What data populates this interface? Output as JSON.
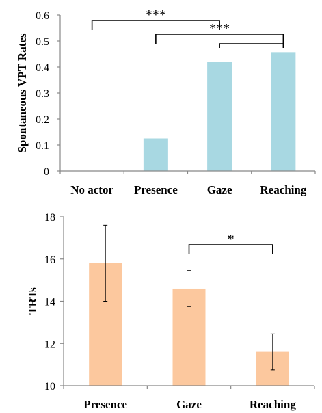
{
  "chart_data": [
    {
      "type": "bar",
      "title": "",
      "ylabel": "Spontaneous VPT Rates",
      "xlabel": "",
      "categories": [
        "No actor",
        "Presence",
        "Gaze",
        "Reaching"
      ],
      "values": [
        0,
        0.125,
        0.42,
        0.457
      ],
      "ylim": [
        0,
        0.6
      ],
      "yticks": [
        0,
        0.1,
        0.2,
        0.3,
        0.4,
        0.5,
        0.6
      ],
      "ytick_labels": [
        "0",
        "0.1",
        "0.2",
        "0.3",
        "0.4",
        "0.5",
        "0.6"
      ],
      "bar_color": "#a8d8e2",
      "grid": false,
      "significance": [
        {
          "from": "No actor",
          "to": "Gaze",
          "label": "***"
        },
        {
          "from": "Presence",
          "to": "Reaching",
          "label": "***"
        },
        {
          "from": "Gaze",
          "to": "Reaching",
          "label": ""
        }
      ]
    },
    {
      "type": "bar",
      "title": "",
      "ylabel": "TRTs",
      "xlabel": "",
      "categories": [
        "Presence",
        "Gaze",
        "Reaching"
      ],
      "values": [
        15.8,
        14.6,
        11.6
      ],
      "error": [
        1.8,
        0.85,
        0.85
      ],
      "ylim": [
        10,
        18
      ],
      "yticks": [
        10,
        12,
        14,
        16,
        18
      ],
      "ytick_labels": [
        "10",
        "12",
        "14",
        "16",
        "18"
      ],
      "bar_color": "#fcc89e",
      "grid": false,
      "significance": [
        {
          "from": "Gaze",
          "to": "Reaching",
          "label": "*"
        }
      ]
    }
  ]
}
